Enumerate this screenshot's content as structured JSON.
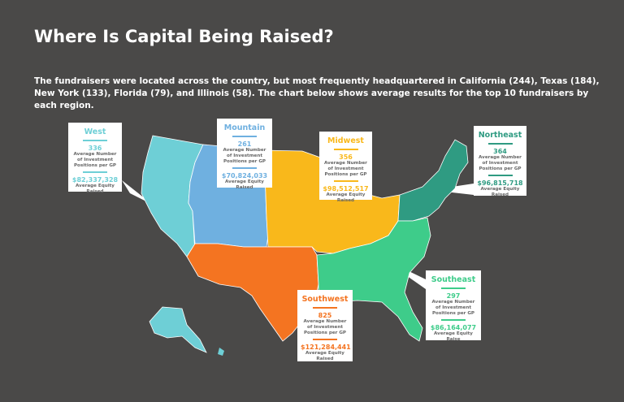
{
  "title": "Where Is Capital Being Raised?",
  "subtitle": "The fundraisers were located across the country, but most frequently headquartered in California (244), Texas (184), New York (133), Florida (79), and Illinois (58).  The chart below shows average results for the top 10 fundraisers by each region.",
  "captions": {
    "positions": "Average Number of Investment Positions per GP",
    "equity": "Average Equity Raised"
  },
  "colors": {
    "west": "#6ecfd6",
    "mountain": "#6fb0e0",
    "midwest": "#f9b81b",
    "northeast": "#2f9b82",
    "southwest": "#f47421",
    "southeast": "#3ecc8a",
    "background": "#4a4948"
  },
  "regions": {
    "west": {
      "name": "West",
      "positions": "336",
      "equity": "$82,337,328",
      "equity_caption": "Average Equity Raised"
    },
    "mountain": {
      "name": "Mountain",
      "positions": "261",
      "equity": "$70,824,033",
      "equity_caption": "Average Equity Raised"
    },
    "midwest": {
      "name": "Midwest",
      "positions": "356",
      "equity": "$98,512,517",
      "equity_caption": "Average Equity Raised"
    },
    "northeast": {
      "name": "Northeast",
      "positions": "364",
      "equity": "$96,815,718",
      "equity_caption": "Average Equity Raised"
    },
    "southwest": {
      "name": "Southwest",
      "positions": "825",
      "equity": "$121,284,441",
      "equity_caption": "Average Equity Raised"
    },
    "southeast": {
      "name": "Southeast",
      "positions": "297",
      "equity": "$86,164,077",
      "equity_caption": "Average Equity Raise"
    }
  }
}
